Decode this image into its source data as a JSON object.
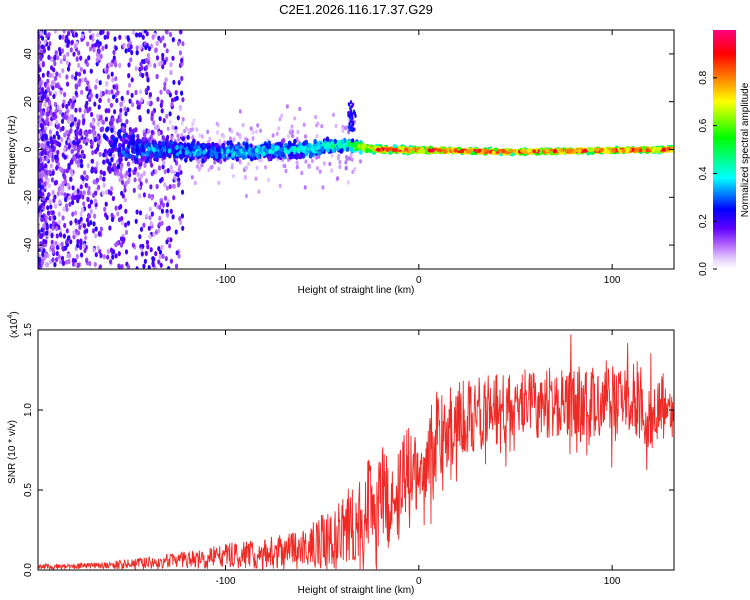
{
  "chart_data": [
    {
      "type": "heatmap",
      "title": "C2E1.2026.116.17.37.G29",
      "xlabel": "Height of straight line (km)",
      "ylabel": "Frequency (Hz)",
      "xlim": [
        -197,
        132
      ],
      "ylim": [
        -50,
        50
      ],
      "x_ticks": [
        -100,
        0,
        100
      ],
      "x_tick_labels": [
        "-100",
        "0",
        "100"
      ],
      "y_ticks": [
        -40,
        -20,
        0,
        20,
        40
      ],
      "y_tick_labels": [
        "-40",
        "-20",
        "0",
        "20",
        "40"
      ],
      "colorbar": {
        "label": "Normalized spectral amplitude",
        "range": [
          0,
          1
        ],
        "ticks": [
          0.0,
          0.2,
          0.4,
          0.6,
          0.8
        ],
        "tick_labels": [
          "0.0",
          "0.2",
          "0.4",
          "0.6",
          "0.8"
        ],
        "colors": [
          "#ffffff",
          "#b469ff",
          "#5f00ff",
          "#0000ff",
          "#00ffff",
          "#00ff00",
          "#ffff00",
          "#ff8000",
          "#ff0000",
          "#ff0080"
        ]
      },
      "description_points": [
        {
          "x": -180,
          "f_center": 0,
          "f_spread": 50,
          "amplitude": 0.15
        },
        {
          "x": -140,
          "f_center": 0,
          "f_spread": 8,
          "amplitude": 0.3
        },
        {
          "x": -100,
          "f_center": -1,
          "f_spread": 6,
          "amplitude": 0.35
        },
        {
          "x": -60,
          "f_center": 0,
          "f_spread": 5,
          "amplitude": 0.4
        },
        {
          "x": -40,
          "f_center": 2,
          "f_spread": 4,
          "amplitude": 0.45
        },
        {
          "x": -20,
          "f_center": 0,
          "f_spread": 2,
          "amplitude": 0.9
        },
        {
          "x": 50,
          "f_center": -1,
          "f_spread": 1.5,
          "amplitude": 0.9
        },
        {
          "x": 130,
          "f_center": 0,
          "f_spread": 1.5,
          "amplitude": 0.9
        }
      ]
    },
    {
      "type": "line",
      "xlabel": "Height of straight line (km)",
      "ylabel": "SNR (10 * v/v)",
      "y_multiplier_label": "(x10",
      "y_multiplier_exp": "4",
      "y_multiplier_close": ")",
      "xlim": [
        -197,
        132
      ],
      "ylim": [
        0,
        1.5
      ],
      "x_ticks": [
        -100,
        0,
        100
      ],
      "x_tick_labels": [
        "-100",
        "0",
        "100"
      ],
      "y_ticks": [
        0.0,
        0.5,
        1.0,
        1.5
      ],
      "y_tick_labels": [
        "0.0",
        "0.5",
        "1.0",
        "1.5"
      ],
      "color": "#ee2a24",
      "envelope": {
        "x": [
          -197,
          -160,
          -130,
          -110,
          -100,
          -80,
          -60,
          -45,
          -30,
          -20,
          -10,
          0,
          10,
          20,
          40,
          60,
          80,
          100,
          110,
          115,
          120,
          125,
          132
        ],
        "mean": [
          0.02,
          0.03,
          0.05,
          0.07,
          0.09,
          0.1,
          0.13,
          0.2,
          0.35,
          0.45,
          0.5,
          0.65,
          0.85,
          0.95,
          1.0,
          1.05,
          1.05,
          1.05,
          1.08,
          1.1,
          0.95,
          1.05,
          1.0
        ],
        "noise": [
          0.01,
          0.015,
          0.03,
          0.04,
          0.05,
          0.06,
          0.08,
          0.12,
          0.18,
          0.2,
          0.22,
          0.2,
          0.18,
          0.15,
          0.14,
          0.14,
          0.14,
          0.14,
          0.14,
          0.18,
          0.14,
          0.12,
          0.12
        ]
      }
    }
  ]
}
